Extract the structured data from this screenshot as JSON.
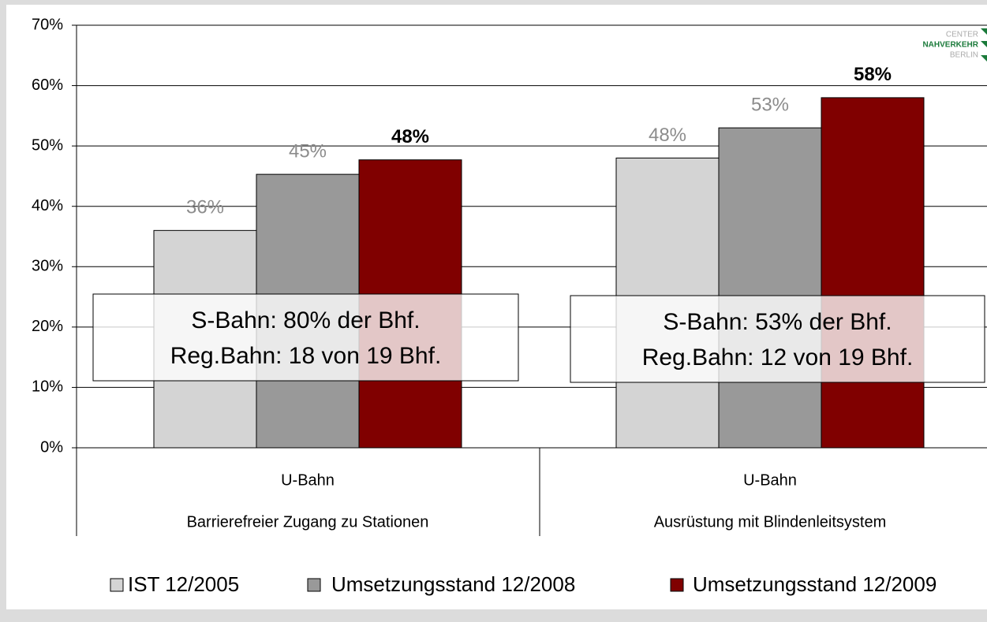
{
  "chart_data": {
    "type": "bar",
    "categories": [
      "U-Bahn",
      "U-Bahn"
    ],
    "category_groups": [
      "Barrierefreier Zugang zu Stationen",
      "Ausrüstung mit Blindenleitsystem"
    ],
    "series": [
      {
        "name": "IST 12/2005",
        "color": "#d4d4d4",
        "values": [
          36,
          48
        ],
        "value_labels": [
          "36%",
          "48%"
        ]
      },
      {
        "name": "Umsetzungsstand 12/2008",
        "color": "#999999",
        "values": [
          45.3,
          53
        ],
        "value_labels": [
          "45%",
          "53%"
        ]
      },
      {
        "name": "Umsetzungsstand 12/2009",
        "color": "#800000",
        "values": [
          47.7,
          58
        ],
        "value_labels": [
          "48%",
          "58%"
        ]
      }
    ],
    "ylim": [
      0,
      70
    ],
    "yticks": [
      {
        "value": 0,
        "label": "0%"
      },
      {
        "value": 10,
        "label": "10%"
      },
      {
        "value": 20,
        "label": "20%"
      },
      {
        "value": 30,
        "label": "30%"
      },
      {
        "value": 40,
        "label": "40%"
      },
      {
        "value": 50,
        "label": "50%"
      },
      {
        "value": 60,
        "label": "60%"
      },
      {
        "value": 70,
        "label": "70%"
      }
    ],
    "grid": true,
    "legend": "bottom",
    "annotations": [
      {
        "lines": [
          "S-Bahn: 80% der Bhf.",
          "Reg.Bahn: 18 von 19 Bhf."
        ]
      },
      {
        "lines": [
          "S-Bahn: 53% der Bhf.",
          "Reg.Bahn: 12 von 19 Bhf."
        ]
      }
    ],
    "logo": [
      "CENTER",
      "NAHVERKEHR",
      "BERLIN"
    ]
  }
}
